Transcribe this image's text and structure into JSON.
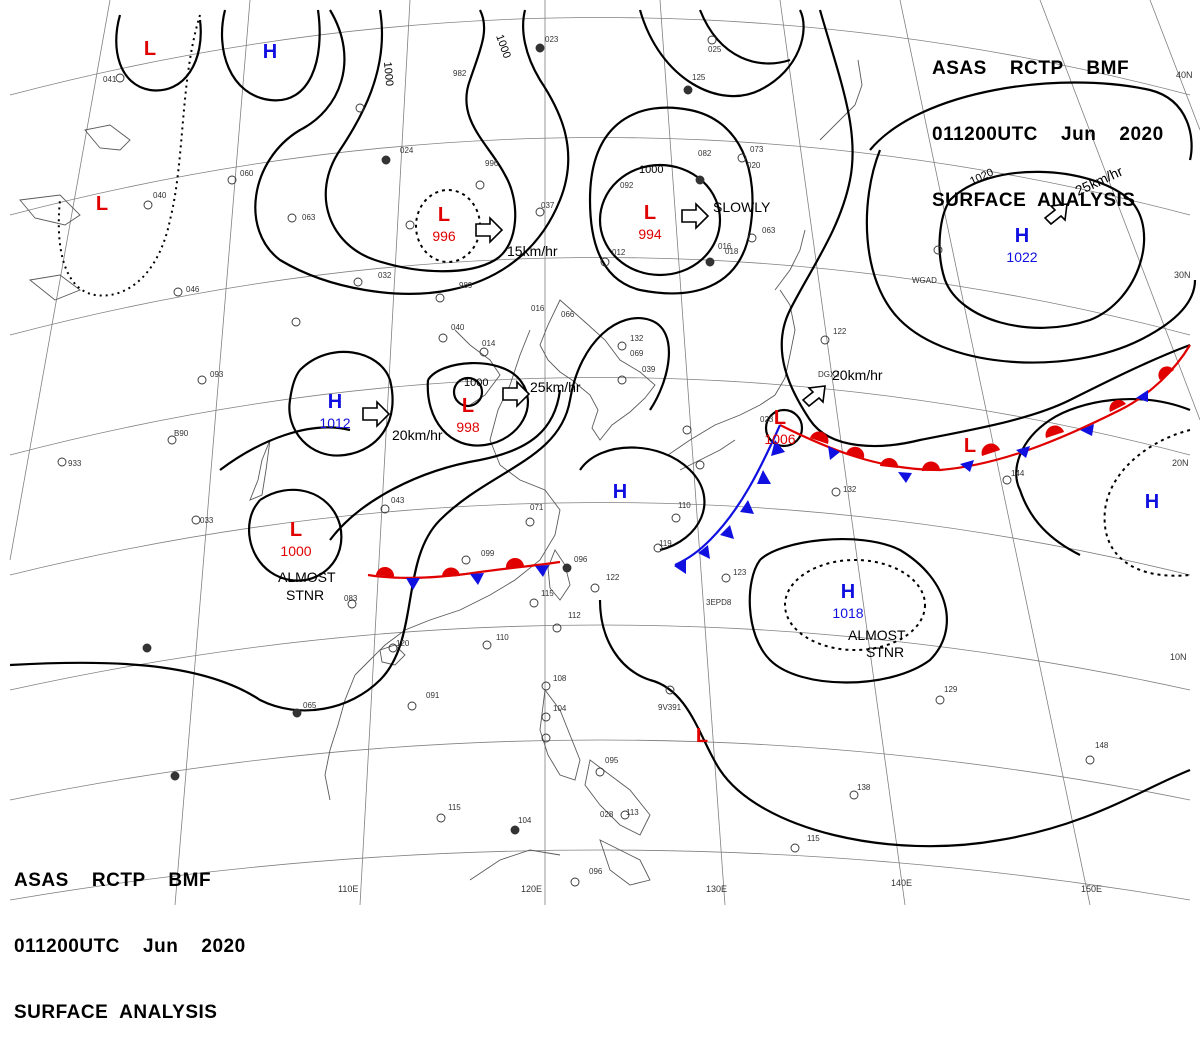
{
  "header": {
    "line1": "ASAS    RCTP    BMF",
    "line2": "011200UTC    Jun    2020",
    "line3": "SURFACE  ANALYSIS"
  },
  "colors": {
    "low": "#e00000",
    "high": "#1010e0",
    "warm_front": "#e00000",
    "cold_front": "#1010e0",
    "isobar": "#000000",
    "coast": "#555555",
    "grid": "#777777"
  },
  "lon_labels": [
    "110E",
    "120E",
    "130E",
    "140E",
    "150E"
  ],
  "lat_labels": [
    "40N",
    "30N",
    "20N",
    "10N"
  ],
  "pressure_systems": [
    {
      "type": "L",
      "value": ""
    },
    {
      "type": "H",
      "value": ""
    },
    {
      "type": "L",
      "value": ""
    },
    {
      "type": "L",
      "value": "996"
    },
    {
      "type": "L",
      "value": "994"
    },
    {
      "type": "H",
      "value": "1022"
    },
    {
      "type": "H",
      "value": "1012"
    },
    {
      "type": "L",
      "value": "998"
    },
    {
      "type": "L",
      "value": "1006"
    },
    {
      "type": "L",
      "value": ""
    },
    {
      "type": "H",
      "value": ""
    },
    {
      "type": "H",
      "value": ""
    },
    {
      "type": "L",
      "value": "1000"
    },
    {
      "type": "H",
      "value": "1018"
    },
    {
      "type": "L",
      "value": ""
    }
  ],
  "isobar_labels": [
    "1000",
    "1000",
    "1000",
    "1000",
    "1020"
  ],
  "motion_labels": [
    "15km/hr",
    "SLOWLY",
    "25km/hr",
    "25km/hr",
    "20km/hr",
    "20km/hr"
  ],
  "stationary_notes": [
    "ALMOST",
    "STNR",
    "ALMOST",
    "STNR"
  ],
  "station_values": [
    "041",
    "060",
    "040",
    "063",
    "032",
    "989",
    "040",
    "014",
    "016",
    "024",
    "037",
    "996",
    "982",
    "023",
    "125",
    "092",
    "012",
    "018",
    "016",
    "063",
    "073",
    "066",
    "046",
    "093",
    "B90",
    "933",
    "033",
    "043",
    "071",
    "099",
    "096",
    "122",
    "115",
    "112",
    "110",
    "120",
    "083",
    "065",
    "091",
    "108",
    "104",
    "095",
    "113",
    "115",
    "104",
    "096",
    "110",
    "119",
    "123",
    "132",
    "138",
    "148",
    "129",
    "122",
    "144",
    "132",
    "069",
    "039",
    "082",
    "020",
    "023",
    "025",
    "028",
    "115"
  ],
  "ship_labels": [
    "WGAD",
    "DGXJ",
    "3EPD8",
    "9V391"
  ]
}
